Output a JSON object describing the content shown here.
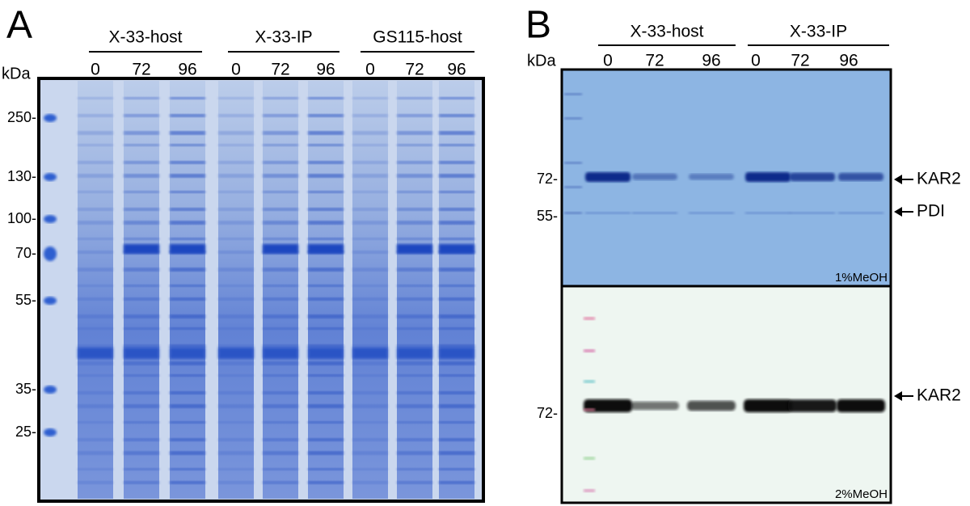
{
  "panels": [
    {
      "label": "A",
      "unit": "kDa",
      "groups": [
        {
          "name": "X-33-host",
          "lanes": [
            "0",
            "72",
            "96"
          ]
        },
        {
          "name": "X-33-IP",
          "lanes": [
            "0",
            "72",
            "96"
          ]
        },
        {
          "name": "GS115-host",
          "lanes": [
            "0",
            "72",
            "96"
          ]
        }
      ],
      "markers": [
        "250-",
        "130-",
        "100-",
        "70-",
        "55-",
        "35-",
        "25-"
      ]
    },
    {
      "label": "B",
      "unit": "kDa",
      "groups": [
        {
          "name": "X-33-host",
          "lanes": [
            "0",
            "72",
            "96"
          ]
        },
        {
          "name": "X-33-IP",
          "lanes": [
            "0",
            "72",
            "96"
          ]
        }
      ],
      "blots": [
        {
          "markers": [
            "72-",
            "55-"
          ],
          "annotations": [
            "KAR2",
            "PDI"
          ],
          "condition": "1%MeOH"
        },
        {
          "markers": [
            "72-"
          ],
          "annotations": [
            "KAR2"
          ],
          "condition": "2%MeOH"
        }
      ]
    }
  ]
}
